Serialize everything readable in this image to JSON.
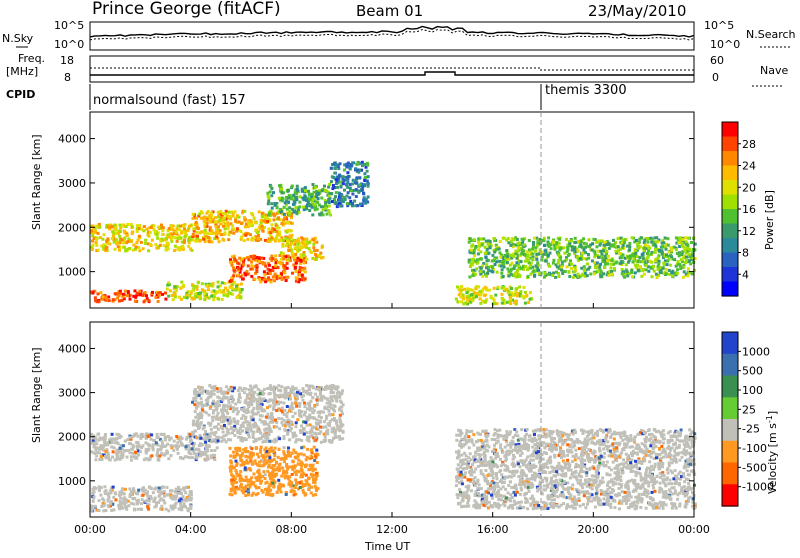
{
  "header": {
    "station": "Prince George (fitACF)",
    "beam": "Beam 01",
    "date": "23/May/2010"
  },
  "noise_panel": {
    "left_label": "N.Sky",
    "right_label": "N.Search",
    "left_ticks": [
      "10^5",
      "10^0"
    ],
    "right_ticks": [
      "10^5",
      "10^0"
    ]
  },
  "freq_panel": {
    "left_label_1": "Freq.",
    "left_label_2": "[MHz]",
    "right_label": "Nave",
    "left_ticks": [
      "18",
      "8"
    ],
    "right_ticks": [
      "60",
      "0"
    ]
  },
  "cpid_panel": {
    "label": "CPID",
    "program_1": "normalsound (fast) 157",
    "program_2": "themis 3300"
  },
  "power_colorbar": {
    "title": "Power [dB]",
    "ticks": [
      "28",
      "24",
      "20",
      "16",
      "12",
      "8",
      "4"
    ],
    "colors": [
      "#ff0000",
      "#ff4400",
      "#ff8800",
      "#ffbb00",
      "#e0e000",
      "#a0e000",
      "#4fc030",
      "#3b9a6b",
      "#2a8a9a",
      "#2a62c0",
      "#1c34d8",
      "#0000ff"
    ]
  },
  "velocity_colorbar": {
    "title": "Velocity [m s",
    "title_sup": "-1",
    "title_end": "]",
    "ticks": [
      "1000",
      "500",
      "100",
      "25",
      "-25",
      "-100",
      "-500",
      "-1000"
    ],
    "colors": [
      "#2244cc",
      "#3a70b0",
      "#3a9050",
      "#66cc33",
      "#c0c0b8",
      "#ff9922",
      "#ff6600",
      "#ff0000"
    ]
  },
  "colors": {
    "gray_scatter": "#c0c0b8"
  },
  "axes": {
    "ylabel": "Slant Range [km]",
    "xlabel": "Time UT",
    "yticks": [
      "4000",
      "3000",
      "2000",
      "1000"
    ],
    "xticks": [
      "00:00",
      "04:00",
      "08:00",
      "12:00",
      "16:00",
      "20:00",
      "00:00"
    ]
  },
  "chart_data": {
    "type": "heatmap",
    "panels": [
      "Power [dB]",
      "Velocity [m s-1]"
    ],
    "xlabel": "Time UT",
    "ylabel": "Slant Range [km]",
    "xlim_hours": [
      0,
      24
    ],
    "ylim_km": [
      180,
      4600
    ],
    "yticks_km": [
      1000,
      2000,
      3000,
      4000
    ],
    "xticks_hours": [
      0,
      4,
      8,
      12,
      16,
      20,
      24
    ],
    "power_range_db": [
      0,
      30
    ],
    "velocity_range": [
      -1000,
      1000
    ],
    "power_echo_regions": [
      {
        "t0": 0.0,
        "t1": 3.0,
        "r0": 350,
        "r1": 600,
        "power_db": 28
      },
      {
        "t0": 3.0,
        "t1": 6.0,
        "r0": 400,
        "r1": 800,
        "power_db": 18
      },
      {
        "t0": 5.5,
        "t1": 8.5,
        "r0": 800,
        "r1": 1400,
        "power_db": 26
      },
      {
        "t0": 0.0,
        "t1": 4.0,
        "r0": 1500,
        "r1": 2100,
        "power_db": 20
      },
      {
        "t0": 4.0,
        "t1": 8.0,
        "r0": 1700,
        "r1": 2400,
        "power_db": 22
      },
      {
        "t0": 7.5,
        "t1": 9.2,
        "r0": 1300,
        "r1": 1800,
        "power_db": 20
      },
      {
        "t0": 7.0,
        "t1": 9.5,
        "r0": 2300,
        "r1": 3000,
        "power_db": 12
      },
      {
        "t0": 9.5,
        "t1": 11.0,
        "r0": 2500,
        "r1": 3500,
        "power_db": 8
      },
      {
        "t0": 15.0,
        "t1": 24.0,
        "r0": 900,
        "r1": 1800,
        "power_db": 14
      },
      {
        "t0": 14.5,
        "t1": 17.5,
        "r0": 300,
        "r1": 700,
        "power_db": 18
      }
    ],
    "velocity_echo_regions": [
      {
        "t0": 0.0,
        "t1": 4.0,
        "r0": 350,
        "r1": 900,
        "velocity": 0
      },
      {
        "t0": 0.0,
        "t1": 5.0,
        "r0": 1500,
        "r1": 2100,
        "velocity": 0
      },
      {
        "t0": 4.0,
        "t1": 10.0,
        "r0": 1900,
        "r1": 3200,
        "velocity": 0
      },
      {
        "t0": 5.5,
        "t1": 9.0,
        "r0": 700,
        "r1": 1800,
        "velocity": -150
      },
      {
        "t0": 14.5,
        "t1": 24.0,
        "r0": 400,
        "r1": 2200,
        "velocity": 0
      }
    ]
  }
}
